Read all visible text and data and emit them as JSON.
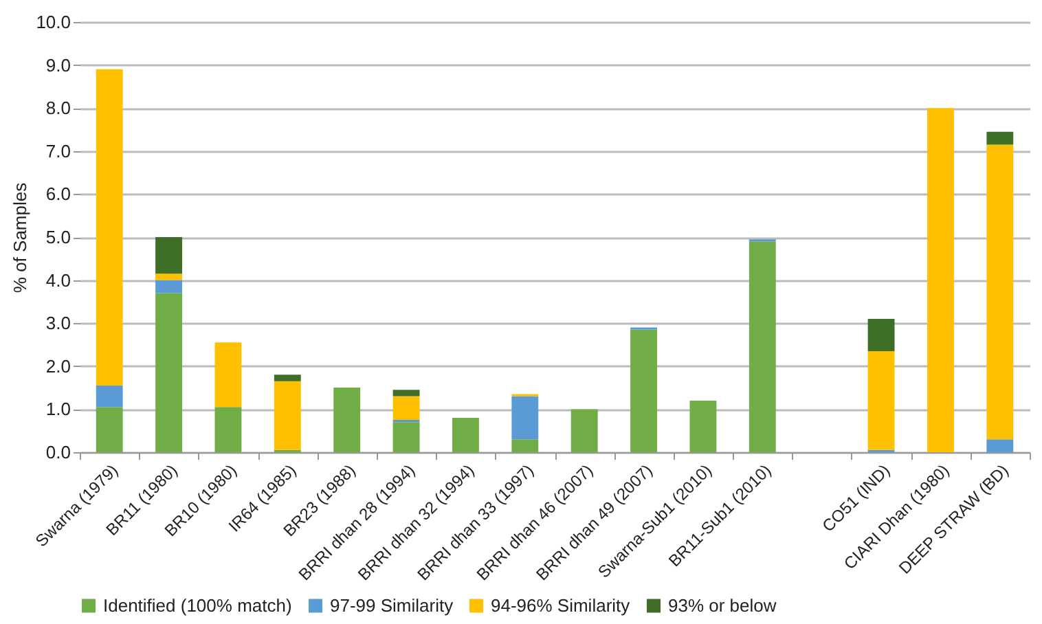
{
  "chart_data": {
    "type": "bar",
    "stacked": true,
    "ylabel": "% of Samples",
    "categories": [
      "Swarna (1979)",
      "BR11 (1980)",
      "BR10 (1980)",
      "IR64 (1985)",
      "BR23 (1988)",
      "BRRI dhan 28 (1994)",
      "BRRI dhan 32 (1994)",
      "BRRI dhan 33 (1997)",
      "BRRI dhan 46 (2007)",
      "BRRI dhan 49 (2007)",
      "Swarna-Sub1 (2010)",
      "BR11-Sub1 (2010)",
      null,
      "CO51 (IND)",
      "CIARI Dhan (1980)",
      "DEEP STRAW (BD)"
    ],
    "series": [
      {
        "name": "Identified (100% match)",
        "color": "#70ad47",
        "values": [
          1.05,
          3.7,
          1.05,
          0.05,
          1.5,
          0.7,
          0.8,
          0.3,
          1.0,
          2.85,
          1.2,
          4.9,
          null,
          0,
          0,
          0
        ]
      },
      {
        "name": "97-99 Similarity",
        "color": "#5b9bd5",
        "values": [
          0.5,
          0.3,
          0,
          0,
          0,
          0.05,
          0,
          1.0,
          0,
          0.05,
          0,
          0.05,
          null,
          0.05,
          0,
          0.3
        ]
      },
      {
        "name": "94-96% Similarity",
        "color": "#ffc000",
        "values": [
          7.35,
          0.15,
          1.5,
          1.6,
          0,
          0.55,
          0,
          0.05,
          0,
          0,
          0,
          0,
          null,
          2.3,
          8.0,
          6.85
        ]
      },
      {
        "name": "93% or below",
        "color": "#3f6e27",
        "values": [
          0,
          0.85,
          0,
          0.15,
          0,
          0.15,
          0,
          0,
          0,
          0,
          0,
          0,
          null,
          0.75,
          0,
          0.3
        ]
      }
    ],
    "ylim": [
      0,
      10
    ],
    "yticks": [
      {
        "value": 0,
        "label": "0.0"
      },
      {
        "value": 1,
        "label": "1.0"
      },
      {
        "value": 2,
        "label": "2.0"
      },
      {
        "value": 3,
        "label": "3.0"
      },
      {
        "value": 4,
        "label": "4.0"
      },
      {
        "value": 5,
        "label": "5.0"
      },
      {
        "value": 6,
        "label": "6.0"
      },
      {
        "value": 7,
        "label": "7.0"
      },
      {
        "value": 8,
        "label": "8.0"
      },
      {
        "value": 9,
        "label": "9.0"
      },
      {
        "value": 10,
        "label": "10.0"
      }
    ],
    "grid": "y",
    "legend": "bottom"
  }
}
